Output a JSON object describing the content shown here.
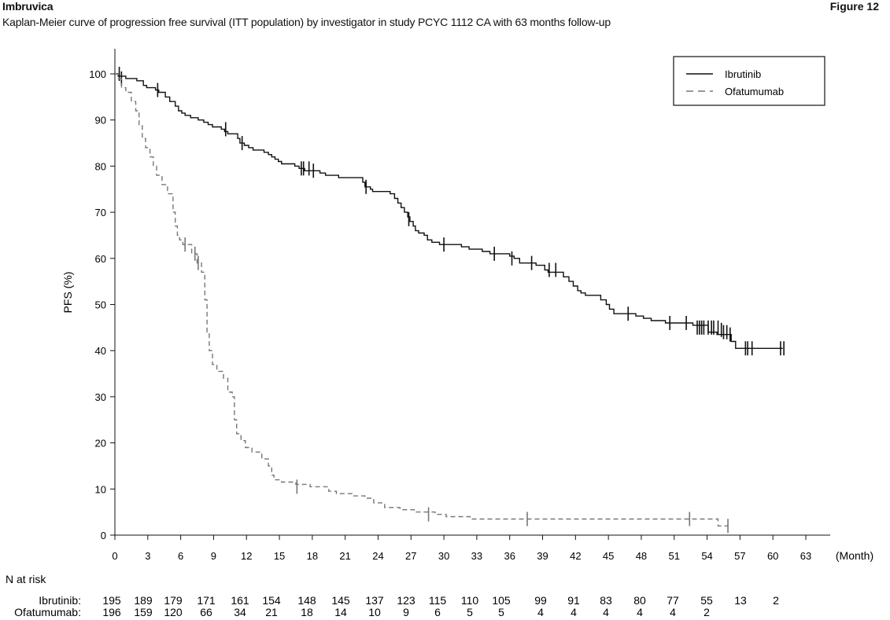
{
  "header": {
    "title": "Imbruvica",
    "figure_label": "Figure 12",
    "subtitle": "Kaplan-Meier curve of progression free survival (ITT population) by investigator in study PCYC 1112 CA with 63 months follow-up"
  },
  "chart_data": {
    "type": "line",
    "ylabel": "PFS (%)",
    "xlabel": "(Month)",
    "xlim": [
      0,
      63
    ],
    "ylim": [
      0,
      100
    ],
    "x_ticks": [
      0,
      3,
      6,
      9,
      12,
      15,
      18,
      21,
      24,
      27,
      30,
      33,
      36,
      39,
      42,
      45,
      48,
      51,
      54,
      57,
      60,
      63
    ],
    "y_ticks": [
      0,
      10,
      20,
      30,
      40,
      50,
      60,
      70,
      80,
      90,
      100
    ],
    "grid": false,
    "legend_position": "top-right",
    "series": [
      {
        "name": "Ibrutinib",
        "line_style": "solid",
        "color": "#111111",
        "steps": [
          [
            0,
            100
          ],
          [
            0.3,
            99.5
          ],
          [
            1,
            99
          ],
          [
            2,
            98.5
          ],
          [
            2.6,
            97.5
          ],
          [
            2.9,
            97
          ],
          [
            3.7,
            96.5
          ],
          [
            4,
            96
          ],
          [
            4.6,
            95
          ],
          [
            5,
            94
          ],
          [
            5.5,
            93
          ],
          [
            5.8,
            92
          ],
          [
            6.1,
            91.5
          ],
          [
            6.4,
            91
          ],
          [
            6.9,
            90.5
          ],
          [
            7.6,
            90
          ],
          [
            8.1,
            89.5
          ],
          [
            8.5,
            89
          ],
          [
            8.9,
            88.5
          ],
          [
            9.7,
            88
          ],
          [
            10,
            87.5
          ],
          [
            10.3,
            87
          ],
          [
            11.2,
            86
          ],
          [
            11.4,
            85
          ],
          [
            11.8,
            84.5
          ],
          [
            12.2,
            84
          ],
          [
            12.6,
            83.5
          ],
          [
            13.6,
            83
          ],
          [
            14,
            82.5
          ],
          [
            14.3,
            82
          ],
          [
            14.6,
            81.5
          ],
          [
            14.9,
            81
          ],
          [
            15.2,
            80.5
          ],
          [
            16.4,
            80
          ],
          [
            16.8,
            79.5
          ],
          [
            17.3,
            79
          ],
          [
            18.7,
            78.5
          ],
          [
            19.2,
            78
          ],
          [
            20.4,
            77.5
          ],
          [
            22.6,
            76.5
          ],
          [
            22.8,
            75.5
          ],
          [
            23.3,
            75
          ],
          [
            23.5,
            74.5
          ],
          [
            25.1,
            74
          ],
          [
            25.5,
            73
          ],
          [
            25.8,
            72
          ],
          [
            26.1,
            71
          ],
          [
            26.4,
            70
          ],
          [
            26.7,
            69
          ],
          [
            26.9,
            68
          ],
          [
            27.2,
            67
          ],
          [
            27.4,
            66
          ],
          [
            27.7,
            65.5
          ],
          [
            28.2,
            65
          ],
          [
            28.5,
            64
          ],
          [
            28.9,
            63.5
          ],
          [
            29.6,
            63
          ],
          [
            31.6,
            62.5
          ],
          [
            32.3,
            62
          ],
          [
            33.5,
            61.5
          ],
          [
            34.2,
            61
          ],
          [
            36,
            60.5
          ],
          [
            36.4,
            60
          ],
          [
            36.9,
            59
          ],
          [
            38.4,
            58.5
          ],
          [
            39.2,
            57.5
          ],
          [
            39.5,
            57
          ],
          [
            40.9,
            56
          ],
          [
            41.4,
            55
          ],
          [
            41.8,
            54
          ],
          [
            42.2,
            53
          ],
          [
            42.5,
            52.5
          ],
          [
            42.9,
            52
          ],
          [
            44.3,
            51
          ],
          [
            44.8,
            50
          ],
          [
            45.1,
            49
          ],
          [
            45.5,
            48
          ],
          [
            47.5,
            47.5
          ],
          [
            48.2,
            47
          ],
          [
            48.9,
            46.5
          ],
          [
            50.2,
            46
          ],
          [
            52.7,
            45.5
          ],
          [
            54.1,
            44
          ],
          [
            54.9,
            43.5
          ],
          [
            56.2,
            42
          ],
          [
            56.6,
            40.5
          ],
          [
            60.9,
            40.5
          ]
        ],
        "censor_marks": [
          [
            0.4,
            100
          ],
          [
            0.6,
            99
          ],
          [
            3.9,
            96.5
          ],
          [
            10.1,
            88
          ],
          [
            11.6,
            85
          ],
          [
            17,
            79.5
          ],
          [
            17.2,
            79.5
          ],
          [
            17.7,
            79.5
          ],
          [
            18.1,
            79
          ],
          [
            22.9,
            75.5
          ],
          [
            26.8,
            68.5
          ],
          [
            30,
            63
          ],
          [
            34.6,
            61
          ],
          [
            36.2,
            60
          ],
          [
            38,
            59
          ],
          [
            39.6,
            57.5
          ],
          [
            40.2,
            57.5
          ],
          [
            46.8,
            48
          ],
          [
            50.6,
            46
          ],
          [
            52.1,
            46
          ],
          [
            53.1,
            45
          ],
          [
            53.3,
            45
          ],
          [
            53.5,
            45
          ],
          [
            53.7,
            45
          ],
          [
            54.1,
            45
          ],
          [
            54.4,
            45
          ],
          [
            54.6,
            45
          ],
          [
            55,
            45
          ],
          [
            55.3,
            44.5
          ],
          [
            55.5,
            44
          ],
          [
            55.8,
            44
          ],
          [
            56.1,
            43.5
          ],
          [
            57.5,
            40.5
          ],
          [
            57.7,
            40.5
          ],
          [
            58.1,
            40.5
          ],
          [
            60.7,
            40.5
          ],
          [
            61,
            40.5
          ]
        ]
      },
      {
        "name": "Ofatumumab",
        "line_style": "dashed",
        "color": "#777777",
        "steps": [
          [
            0,
            100
          ],
          [
            0.3,
            99
          ],
          [
            0.6,
            97
          ],
          [
            1,
            96
          ],
          [
            1.5,
            94
          ],
          [
            1.9,
            92
          ],
          [
            2.2,
            89
          ],
          [
            2.5,
            86
          ],
          [
            2.8,
            84
          ],
          [
            3.2,
            82
          ],
          [
            3.5,
            80
          ],
          [
            3.8,
            78
          ],
          [
            4.3,
            76
          ],
          [
            4.8,
            74
          ],
          [
            5.3,
            70
          ],
          [
            5.5,
            67
          ],
          [
            5.7,
            65
          ],
          [
            5.9,
            64
          ],
          [
            6.2,
            63
          ],
          [
            7,
            61
          ],
          [
            7.5,
            59
          ],
          [
            7.9,
            57
          ],
          [
            8.2,
            51
          ],
          [
            8.4,
            44
          ],
          [
            8.6,
            40
          ],
          [
            8.9,
            37
          ],
          [
            9.3,
            35.5
          ],
          [
            9.9,
            34
          ],
          [
            10.3,
            31
          ],
          [
            10.7,
            30
          ],
          [
            10.9,
            25
          ],
          [
            11.1,
            22
          ],
          [
            11.5,
            20.5
          ],
          [
            11.9,
            19
          ],
          [
            12.5,
            18
          ],
          [
            13.4,
            16.5
          ],
          [
            14,
            15
          ],
          [
            14.3,
            13
          ],
          [
            14.5,
            12
          ],
          [
            15.2,
            11.5
          ],
          [
            16.5,
            11
          ],
          [
            17.8,
            10.5
          ],
          [
            19.5,
            9.5
          ],
          [
            20.2,
            9
          ],
          [
            21.6,
            8.5
          ],
          [
            22.8,
            8
          ],
          [
            23.6,
            7
          ],
          [
            24.6,
            6
          ],
          [
            26,
            5.5
          ],
          [
            27.3,
            5
          ],
          [
            29.2,
            4.5
          ],
          [
            30.2,
            4
          ],
          [
            32.4,
            3.5
          ],
          [
            55,
            2
          ],
          [
            55.9,
            2
          ]
        ],
        "censor_marks": [
          [
            6.4,
            63
          ],
          [
            7.3,
            61
          ],
          [
            7.6,
            59
          ],
          [
            16.6,
            10.5
          ],
          [
            28.6,
            4.5
          ],
          [
            37.6,
            3.5
          ],
          [
            52.4,
            3.5
          ],
          [
            55.9,
            2
          ]
        ]
      }
    ]
  },
  "risk_table": {
    "title": "N at risk",
    "columns": [
      0,
      3,
      6,
      9,
      12,
      15,
      18,
      21,
      24,
      27,
      30,
      33,
      36,
      39,
      42,
      45,
      48,
      51,
      54,
      57,
      60
    ],
    "rows": [
      {
        "label": "Ibrutinib:",
        "values": [
          "195",
          "189",
          "179",
          "171",
          "161",
          "154",
          "148",
          "145",
          "137",
          "123",
          "115",
          "110",
          "105",
          "99",
          "91",
          "83",
          "80",
          "77",
          "55",
          "13",
          "2"
        ]
      },
      {
        "label": "Ofatumumab:",
        "values": [
          "196",
          "159",
          "120",
          "66",
          "34",
          "21",
          "18",
          "14",
          "10",
          "9",
          "6",
          "5",
          "5",
          "4",
          "4",
          "4",
          "4",
          "4",
          "2",
          "",
          ""
        ]
      }
    ]
  }
}
